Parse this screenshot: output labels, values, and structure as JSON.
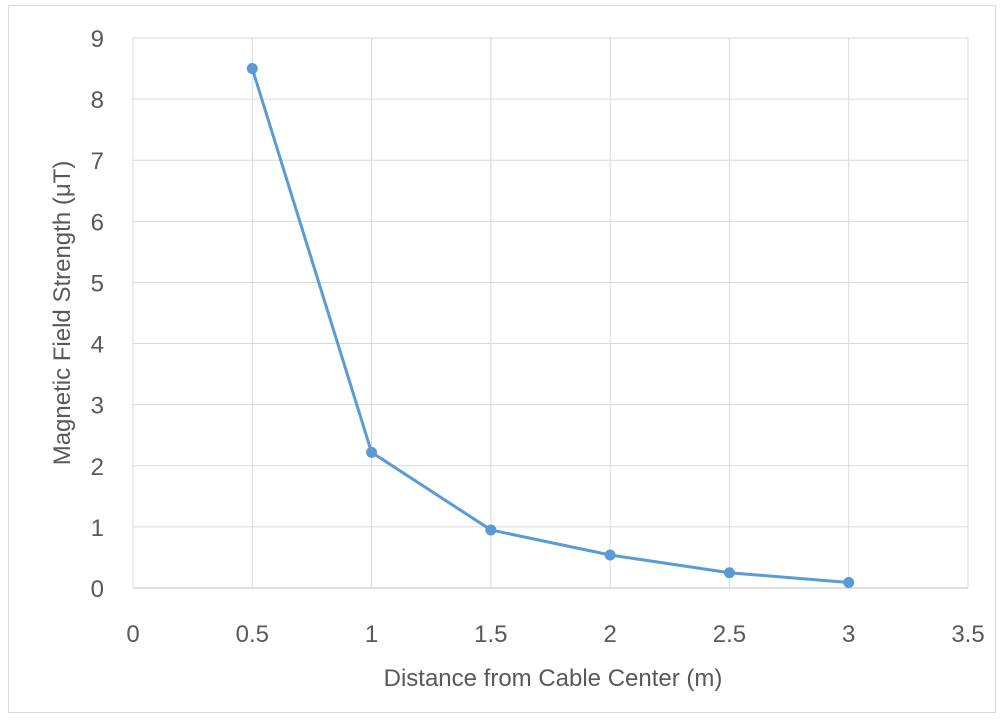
{
  "chart_data": {
    "type": "line",
    "title": "",
    "xlabel": "Distance from Cable Center (m)",
    "ylabel": "Magnetic Field Strength (μT)",
    "xlim": [
      0,
      3.5
    ],
    "ylim": [
      0,
      9
    ],
    "x_ticks": [
      0,
      0.5,
      1,
      1.5,
      2,
      2.5,
      3,
      3.5
    ],
    "x_tick_labels": [
      "0",
      "0.5",
      "1",
      "1.5",
      "2",
      "2.5",
      "3",
      "3.5"
    ],
    "y_ticks": [
      0,
      1,
      2,
      3,
      4,
      5,
      6,
      7,
      8,
      9
    ],
    "y_tick_labels": [
      "0",
      "1",
      "2",
      "3",
      "4",
      "5",
      "6",
      "7",
      "8",
      "9"
    ],
    "grid": true,
    "legend": "none",
    "series": [
      {
        "color": "#5b9bd5",
        "markers": true,
        "x": [
          0.5,
          1,
          1.5,
          2,
          2.5,
          3
        ],
        "y": [
          8.5,
          2.22,
          0.95,
          0.54,
          0.25,
          0.09
        ]
      }
    ]
  }
}
